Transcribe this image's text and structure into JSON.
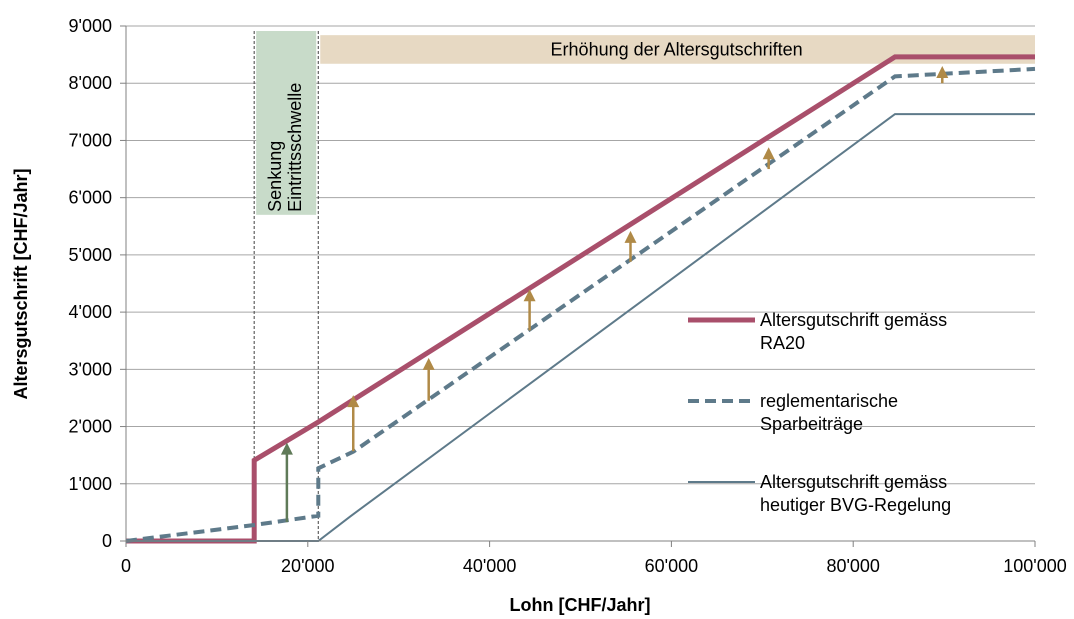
{
  "chart_data": {
    "type": "line",
    "title": "",
    "xlabel": "Lohn [CHF/Jahr]",
    "ylabel": "Altersgutschrift [CHF/Jahr]",
    "xlim": [
      0,
      100000
    ],
    "ylim": [
      0,
      9000
    ],
    "x_ticks": [
      0,
      20000,
      40000,
      60000,
      80000,
      100000
    ],
    "x_tick_labels": [
      "0",
      "20'000",
      "40'000",
      "60'000",
      "80'000",
      "100'000"
    ],
    "y_ticks": [
      0,
      1000,
      2000,
      3000,
      4000,
      5000,
      6000,
      7000,
      8000,
      9000
    ],
    "y_tick_labels": [
      "0",
      "1'000",
      "2'000",
      "3'000",
      "4'000",
      "5'000",
      "6'000",
      "7'000",
      "8'000",
      "9'000"
    ],
    "grid": "horizontal",
    "legend_position": "right",
    "series": [
      {
        "name": "Altersgutschrift gemäss RA20",
        "style": "solid-thick",
        "color": "#a94f6b",
        "x": [
          0,
          14100,
          14100,
          21150,
          84600,
          100000
        ],
        "y": [
          0,
          0,
          1410,
          2080,
          8460,
          8460
        ]
      },
      {
        "name": "reglementarische Sparbeiträge",
        "style": "dashed",
        "color": "#5e7a8a",
        "x": [
          0,
          14100,
          21150,
          21150,
          25000,
          84600,
          100000
        ],
        "y": [
          0,
          280,
          440,
          1270,
          1560,
          8120,
          8250
        ]
      },
      {
        "name": "Altersgutschrift gemäss heutiger BVG-Regelung",
        "style": "solid-thin",
        "color": "#5e7a8a",
        "x": [
          0,
          21150,
          24675,
          84600,
          100000
        ],
        "y": [
          0,
          0,
          430,
          7460,
          7460
        ]
      }
    ],
    "legend": [
      {
        "label_lines": [
          "Altersgutschrift gemäss",
          "RA20"
        ]
      },
      {
        "label_lines": [
          "reglementarische",
          "Sparbeiträge"
        ]
      },
      {
        "label_lines": [
          "Altersgutschrift gemäss",
          "heutiger BVG-Regelung"
        ]
      }
    ],
    "annotations": {
      "threshold_band": {
        "lines": [
          "Senkung",
          "Eintrittsschwelle"
        ],
        "x_from": 14100,
        "x_to": 21150,
        "y_from": 5700,
        "y_to": 9000,
        "color": "#c8dbc9"
      },
      "increase_band": {
        "text": "Erhöhung der Altersgutschriften",
        "x_from": 21150,
        "x_to": 100000,
        "y_from": 8340,
        "y_to": 8840,
        "color": "#e7d9c3"
      },
      "arrow_color": "#b08a47",
      "entry_arrow_color": "#5f7a58",
      "arrows": [
        {
          "x": 17700,
          "y_from": 330,
          "y_to": 1720,
          "kind": "entry"
        },
        {
          "x": 25000,
          "y_from": 1570,
          "y_to": 2550,
          "kind": "increase"
        },
        {
          "x": 33300,
          "y_from": 2450,
          "y_to": 3200,
          "kind": "increase"
        },
        {
          "x": 44400,
          "y_from": 3680,
          "y_to": 4400,
          "kind": "increase"
        },
        {
          "x": 55500,
          "y_from": 4880,
          "y_to": 5420,
          "kind": "increase"
        },
        {
          "x": 70700,
          "y_from": 6500,
          "y_to": 6880,
          "kind": "increase"
        },
        {
          "x": 89800,
          "y_from": 8000,
          "y_to": 8300,
          "kind": "increase"
        }
      ]
    }
  }
}
